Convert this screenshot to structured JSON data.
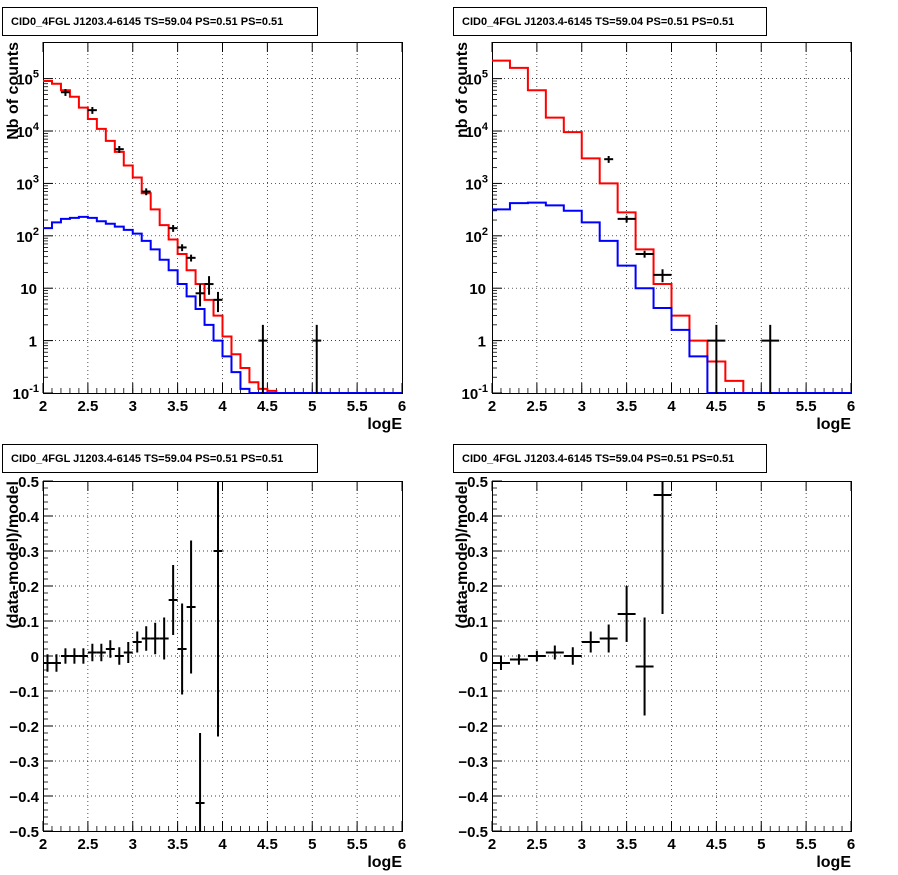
{
  "panels": [
    {
      "title": "CID0_4FGL J1203.4-6145 TS=59.04 PS=0.51 PS=0.51",
      "xlabel": "logE",
      "ylabel": "Nb of counts",
      "yscale": "log",
      "xticks": [
        "2",
        "2.5",
        "3",
        "3.5",
        "4",
        "4.5",
        "5",
        "5.5",
        "6"
      ],
      "yticks": [
        "10^-1",
        "1",
        "10",
        "10^2",
        "10^3",
        "10^4",
        "10^5"
      ]
    },
    {
      "title": "CID0_4FGL J1203.4-6145 TS=59.04 PS=0.51 PS=0.51",
      "xlabel": "logE",
      "ylabel": "nb of counts",
      "yscale": "log",
      "xticks": [
        "2",
        "2.5",
        "3",
        "3.5",
        "4",
        "4.5",
        "5",
        "5.5",
        "6"
      ],
      "yticks": [
        "10^-1",
        "1",
        "10",
        "10^2",
        "10^3",
        "10^4",
        "10^5"
      ]
    },
    {
      "title": "CID0_4FGL J1203.4-6145 TS=59.04 PS=0.51 PS=0.51",
      "xlabel": "logE",
      "ylabel": "(data-model)/model",
      "yscale": "linear",
      "xticks": [
        "2",
        "2.5",
        "3",
        "3.5",
        "4",
        "4.5",
        "5",
        "5.5",
        "6"
      ],
      "yticks": [
        "−0.5",
        "−0.4",
        "−0.3",
        "−0.2",
        "−0.1",
        "0",
        "0.1",
        "0.2",
        "0.3",
        "0.4",
        "0.5"
      ]
    },
    {
      "title": "CID0_4FGL J1203.4-6145 TS=59.04 PS=0.51 PS=0.51",
      "xlabel": "logE",
      "ylabel": "(data-model)/model",
      "yscale": "linear",
      "xticks": [
        "2",
        "2.5",
        "3",
        "3.5",
        "4",
        "4.5",
        "5",
        "5.5",
        "6"
      ],
      "yticks": [
        "−0.5",
        "−0.4",
        "−0.3",
        "−0.2",
        "−0.1",
        "0",
        "0.1",
        "0.2",
        "0.3",
        "0.4",
        "0.5"
      ]
    }
  ],
  "chart_data": [
    {
      "type": "line",
      "title": "CID0_4FGL J1203.4-6145 TS=59.04 PS=0.51 PS=0.51",
      "xlabel": "logE",
      "ylabel": "Nb of counts",
      "xlim": [
        2,
        6
      ],
      "ylim": [
        0.1,
        500000
      ],
      "yscale": "log",
      "grid": true,
      "series": [
        {
          "kind": "step",
          "color": "#ff0000",
          "bin_edges": [
            2.0,
            2.1,
            2.2,
            2.3,
            2.4,
            2.5,
            2.6,
            2.7,
            2.8,
            2.9,
            3.0,
            3.1,
            3.2,
            3.3,
            3.4,
            3.5,
            3.6,
            3.7,
            3.8,
            3.9,
            4.0,
            4.1,
            4.2,
            4.3,
            4.4,
            4.5,
            4.6,
            4.7,
            4.8,
            4.9,
            5.0,
            5.1,
            5.2,
            5.3,
            5.4,
            5.5,
            5.6,
            5.7,
            5.8,
            5.9,
            6.0
          ],
          "values": [
            90000,
            80000,
            60000,
            45000,
            28000,
            17000,
            11000,
            6500,
            4000,
            2200,
            1300,
            650,
            320,
            160,
            85,
            45,
            22,
            12,
            6,
            3,
            1.2,
            0.55,
            0.3,
            0.16,
            0.12,
            0.11,
            0.1,
            0.1,
            0.1,
            0.1,
            0.1,
            0.1,
            0.1,
            0.1,
            0.1,
            0.1,
            0.1,
            0.1,
            0.1,
            0.1
          ]
        },
        {
          "kind": "step",
          "color": "#0000ff",
          "bin_edges": [
            2.0,
            2.1,
            2.2,
            2.3,
            2.4,
            2.5,
            2.6,
            2.7,
            2.8,
            2.9,
            3.0,
            3.1,
            3.2,
            3.3,
            3.4,
            3.5,
            3.6,
            3.7,
            3.8,
            3.9,
            4.0,
            4.1,
            4.2,
            4.3,
            4.4,
            4.5,
            4.6,
            4.7,
            4.8,
            4.9,
            5.0,
            5.1,
            5.2,
            5.3,
            5.4,
            5.5,
            5.6,
            5.7,
            5.8,
            5.9,
            6.0
          ],
          "values": [
            140,
            180,
            210,
            220,
            230,
            220,
            190,
            170,
            150,
            130,
            110,
            80,
            55,
            35,
            22,
            12,
            7,
            4,
            2,
            1,
            0.5,
            0.25,
            0.12,
            0.1,
            0.1,
            0.1,
            0.1,
            0.1,
            0.1,
            0.1,
            0.1,
            0.1,
            0.1,
            0.1,
            0.1,
            0.1,
            0.1,
            0.1,
            0.1,
            0.1
          ]
        },
        {
          "kind": "data",
          "color": "#000000",
          "points": [
            {
              "x": 2.25,
              "y": 55000
            },
            {
              "x": 2.55,
              "y": 25000
            },
            {
              "x": 2.85,
              "y": 4500
            },
            {
              "x": 3.15,
              "y": 700
            },
            {
              "x": 3.45,
              "y": 140,
              "xerr": 0.05
            },
            {
              "x": 3.55,
              "y": 60,
              "xerr": 0.05
            },
            {
              "x": 3.65,
              "y": 38,
              "xerr": 0.05
            },
            {
              "x": 3.75,
              "y": 8,
              "xerr": 0.05,
              "ylo": 4.5,
              "yhi": 12
            },
            {
              "x": 3.85,
              "y": 12,
              "xerr": 0.05,
              "ylo": 7.5,
              "yhi": 17
            },
            {
              "x": 3.95,
              "y": 6,
              "xerr": 0.05,
              "ylo": 3.5,
              "yhi": 8.5
            },
            {
              "x": 4.45,
              "y": 1,
              "xerr": 0.05,
              "ylo": 0.1,
              "yhi": 2
            },
            {
              "x": 5.05,
              "y": 1,
              "xerr": 0.05,
              "ylo": 0.1,
              "yhi": 2
            }
          ]
        }
      ]
    },
    {
      "type": "line",
      "title": "CID0_4FGL J1203.4-6145 TS=59.04 PS=0.51 PS=0.51",
      "xlabel": "logE",
      "ylabel": "nb of counts",
      "xlim": [
        2,
        6
      ],
      "ylim": [
        0.1,
        500000
      ],
      "yscale": "log",
      "grid": true,
      "series": [
        {
          "kind": "step",
          "color": "#ff0000",
          "bin_edges": [
            2.0,
            2.2,
            2.4,
            2.6,
            2.8,
            3.0,
            3.2,
            3.4,
            3.6,
            3.8,
            4.0,
            4.2,
            4.4,
            4.6,
            4.8,
            5.0,
            5.2,
            5.4,
            5.6,
            5.8,
            6.0
          ],
          "values": [
            220000,
            160000,
            60000,
            18000,
            9500,
            3000,
            1000,
            280,
            55,
            12,
            3,
            1,
            0.4,
            0.17,
            0.1,
            0.1,
            0.1,
            0.1,
            0.1,
            0.1
          ]
        },
        {
          "kind": "step",
          "color": "#0000ff",
          "bin_edges": [
            2.0,
            2.2,
            2.4,
            2.6,
            2.8,
            3.0,
            3.2,
            3.4,
            3.6,
            3.8,
            4.0,
            4.2,
            4.4,
            4.6,
            4.8,
            5.0,
            5.2,
            5.4,
            5.6,
            5.8,
            6.0
          ],
          "values": [
            320,
            420,
            430,
            380,
            300,
            180,
            80,
            27,
            10,
            4.2,
            1.6,
            0.5,
            0.1,
            0.1,
            0.1,
            0.1,
            0.1,
            0.1,
            0.1,
            0.1
          ]
        },
        {
          "kind": "data",
          "color": "#000000",
          "points": [
            {
              "x": 3.3,
              "y": 2900
            },
            {
              "x": 3.5,
              "y": 210,
              "xerr": 0.1
            },
            {
              "x": 3.7,
              "y": 45,
              "xerr": 0.1
            },
            {
              "x": 3.9,
              "y": 18,
              "xerr": 0.1,
              "ylo": 13,
              "yhi": 23
            },
            {
              "x": 4.5,
              "y": 1,
              "xerr": 0.1,
              "ylo": 0.1,
              "yhi": 2
            },
            {
              "x": 5.1,
              "y": 1,
              "xerr": 0.1,
              "ylo": 0.1,
              "yhi": 2
            }
          ]
        }
      ]
    },
    {
      "type": "scatter",
      "title": "CID0_4FGL J1203.4-6145 TS=59.04 PS=0.51 PS=0.51",
      "xlabel": "logE",
      "ylabel": "(data-model)/model",
      "xlim": [
        2,
        6
      ],
      "ylim": [
        -0.5,
        0.5
      ],
      "grid": true,
      "series": [
        {
          "kind": "data",
          "color": "#000000",
          "points": [
            {
              "x": 2.05,
              "y": -0.02,
              "xerr": 0.05,
              "yerr": 0.025
            },
            {
              "x": 2.15,
              "y": -0.02,
              "xerr": 0.05,
              "yerr": 0.025
            },
            {
              "x": 2.25,
              "y": 0.0,
              "xerr": 0.05,
              "yerr": 0.022
            },
            {
              "x": 2.35,
              "y": 0.0,
              "xerr": 0.05,
              "yerr": 0.022
            },
            {
              "x": 2.45,
              "y": 0.0,
              "xerr": 0.05,
              "yerr": 0.022
            },
            {
              "x": 2.55,
              "y": 0.01,
              "xerr": 0.05,
              "yerr": 0.025
            },
            {
              "x": 2.65,
              "y": 0.01,
              "xerr": 0.05,
              "yerr": 0.025
            },
            {
              "x": 2.75,
              "y": 0.02,
              "xerr": 0.05,
              "yerr": 0.025
            },
            {
              "x": 2.85,
              "y": 0.0,
              "xerr": 0.05,
              "yerr": 0.025
            },
            {
              "x": 2.95,
              "y": 0.01,
              "xerr": 0.05,
              "yerr": 0.03
            },
            {
              "x": 3.05,
              "y": 0.04,
              "xerr": 0.05,
              "yerr": 0.03
            },
            {
              "x": 3.15,
              "y": 0.05,
              "xerr": 0.05,
              "yerr": 0.035
            },
            {
              "x": 3.25,
              "y": 0.05,
              "xerr": 0.05,
              "yerr": 0.045
            },
            {
              "x": 3.35,
              "y": 0.05,
              "xerr": 0.05,
              "yerr": 0.06
            },
            {
              "x": 3.45,
              "y": 0.16,
              "xerr": 0.05,
              "yerr": 0.1
            },
            {
              "x": 3.55,
              "y": 0.02,
              "xerr": 0.05,
              "yerr": 0.13
            },
            {
              "x": 3.65,
              "y": 0.14,
              "xerr": 0.05,
              "yerr": 0.19
            },
            {
              "x": 3.75,
              "y": -0.42,
              "xerr": 0.05,
              "yerr": 0.2
            },
            {
              "x": 3.95,
              "y": 0.3,
              "xerr": 0.05,
              "yerr": 0.53
            }
          ]
        }
      ]
    },
    {
      "type": "scatter",
      "title": "CID0_4FGL J1203.4-6145 TS=59.04 PS=0.51 PS=0.51",
      "xlabel": "logE",
      "ylabel": "(data-model)/model",
      "xlim": [
        2,
        6
      ],
      "ylim": [
        -0.5,
        0.5
      ],
      "grid": true,
      "series": [
        {
          "kind": "data",
          "color": "#000000",
          "points": [
            {
              "x": 2.1,
              "y": -0.02,
              "xerr": 0.1,
              "yerr": 0.02
            },
            {
              "x": 2.3,
              "y": -0.01,
              "xerr": 0.1,
              "yerr": 0.015
            },
            {
              "x": 2.5,
              "y": 0.0,
              "xerr": 0.1,
              "yerr": 0.015
            },
            {
              "x": 2.7,
              "y": 0.01,
              "xerr": 0.1,
              "yerr": 0.02
            },
            {
              "x": 2.9,
              "y": 0.0,
              "xerr": 0.1,
              "yerr": 0.025
            },
            {
              "x": 3.1,
              "y": 0.04,
              "xerr": 0.1,
              "yerr": 0.03
            },
            {
              "x": 3.3,
              "y": 0.05,
              "xerr": 0.1,
              "yerr": 0.04
            },
            {
              "x": 3.5,
              "y": 0.12,
              "xerr": 0.1,
              "yerr": 0.08
            },
            {
              "x": 3.7,
              "y": -0.03,
              "xerr": 0.1,
              "yerr": 0.14
            },
            {
              "x": 3.9,
              "y": 0.46,
              "xerr": 0.1,
              "yerr": 0.34
            }
          ]
        }
      ]
    }
  ]
}
